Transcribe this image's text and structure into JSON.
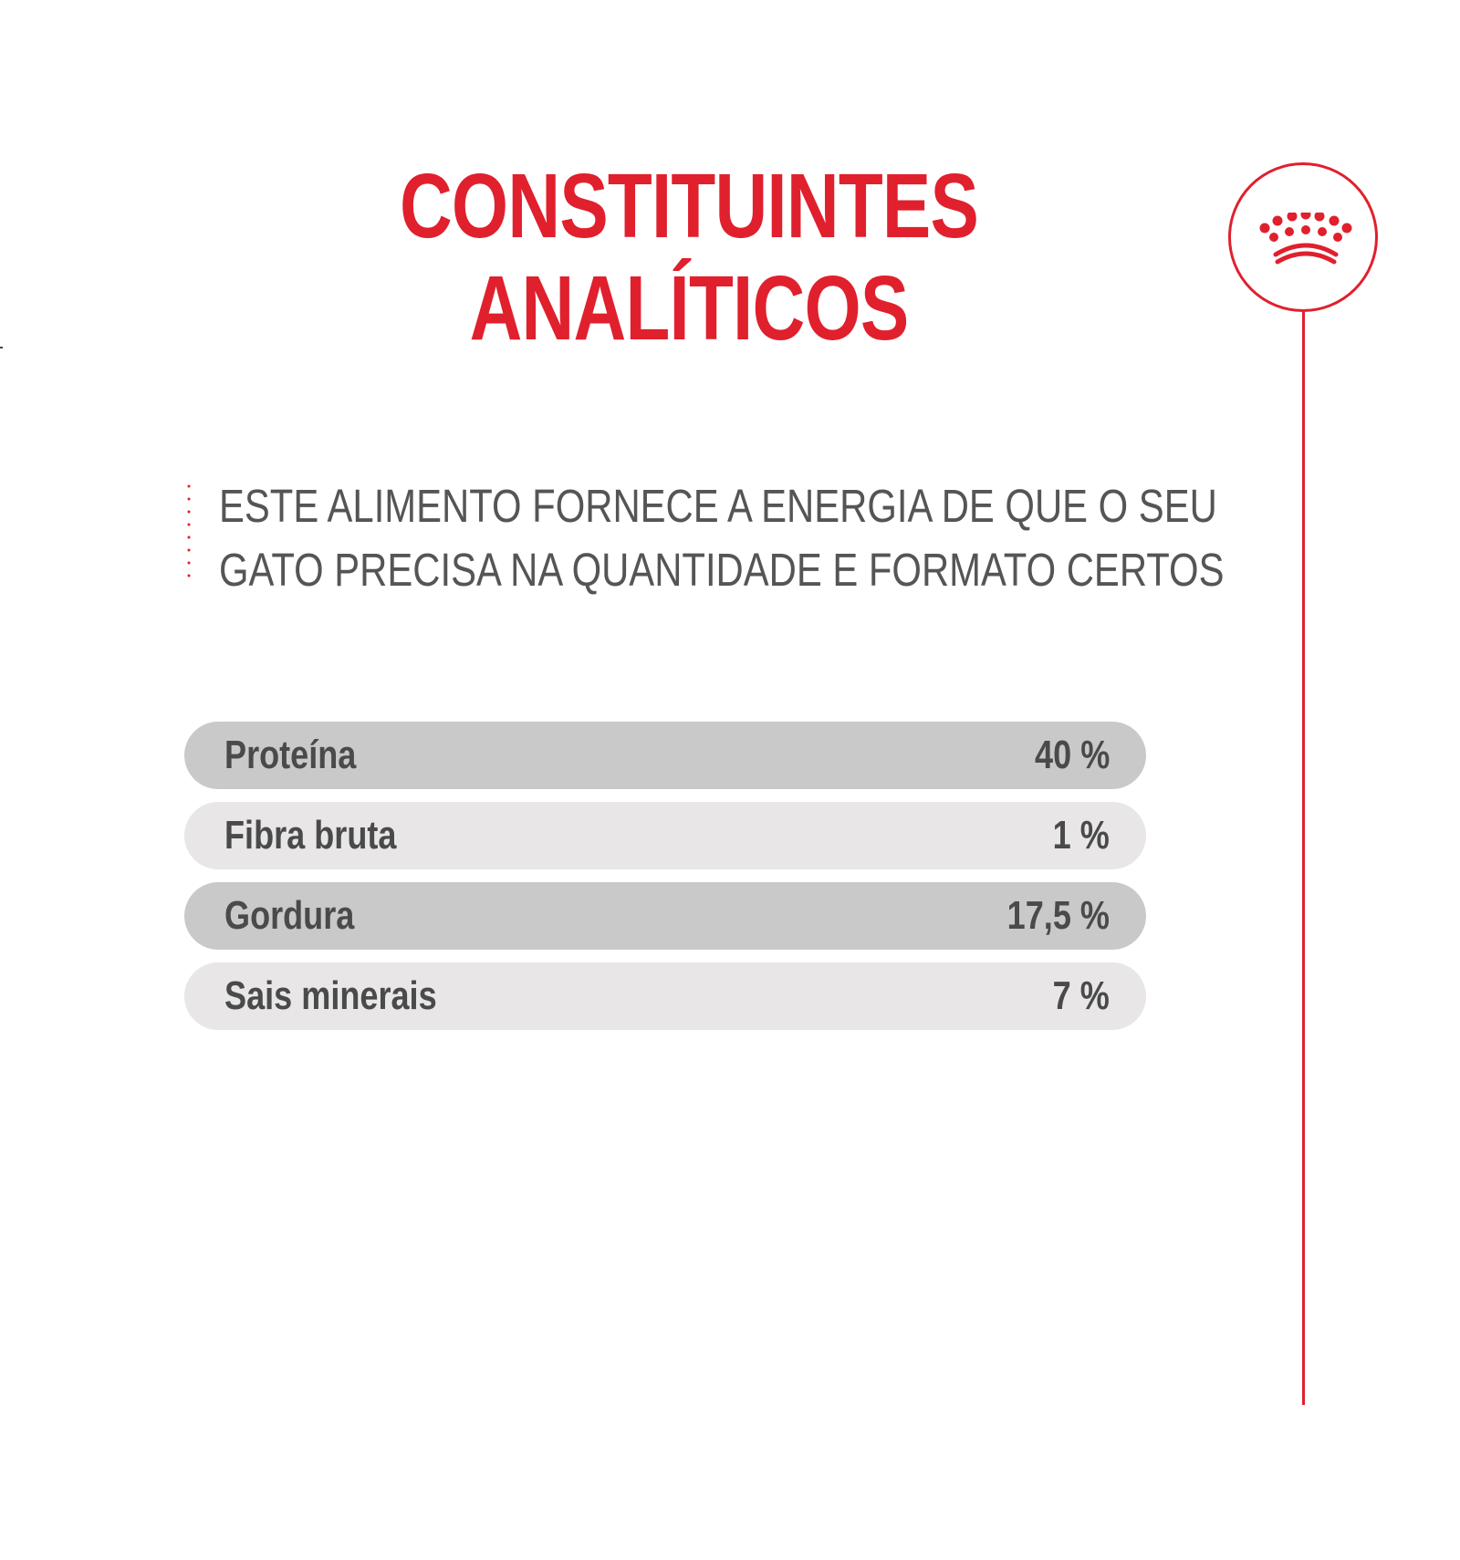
{
  "title": {
    "line1": "CONSTITUINTES",
    "line2": "ANALÍTICOS"
  },
  "subtitle": {
    "line1": "ESTE ALIMENTO FORNECE A ENERGIA DE QUE O SEU",
    "line2": "GATO PRECISA NA QUANTIDADE E FORMATO CERTOS"
  },
  "constituents": [
    {
      "label": "Proteína",
      "value": "40 %"
    },
    {
      "label": "Fibra bruta",
      "value": "1 %"
    },
    {
      "label": "Gordura",
      "value": "17,5 %"
    },
    {
      "label": "Sais minerais",
      "value": "7 %"
    }
  ],
  "brand": {
    "logo_icon": "crown-icon",
    "accent_color": "#e0202d",
    "row_dark_color": "#cac9ca",
    "row_light_color": "#e8e6e6",
    "text_color": "#4a4a4a"
  }
}
